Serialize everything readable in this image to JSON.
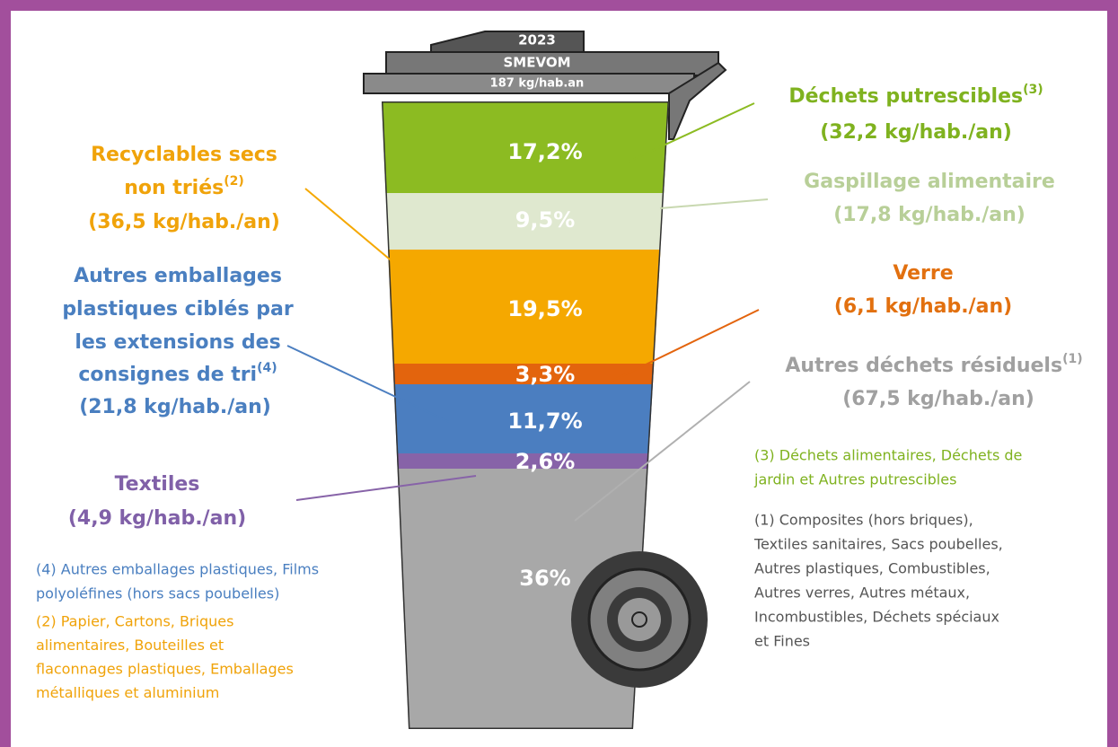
{
  "bin": {
    "year": "2023",
    "org": "SMEVOM",
    "total": "187 kg/hab.an",
    "segments": [
      {
        "label": "17,2%",
        "color": "#8cbb22"
      },
      {
        "label": "9,5%",
        "color": "#dfe8cf"
      },
      {
        "label": "19,5%",
        "color": "#f5a800"
      },
      {
        "label": "3,3%",
        "color": "#e3640d"
      },
      {
        "label": "11,7%",
        "color": "#4b7ec0"
      },
      {
        "label": "2,6%",
        "color": "#8763a8"
      },
      {
        "label": "36%",
        "color": "#a8a8a8"
      }
    ]
  },
  "callouts": {
    "putrescibles": {
      "title": "Déchets putrescibles",
      "sup": "(3)",
      "amount": "(32,2 kg/hab./an)"
    },
    "gaspillage": {
      "title": "Gaspillage alimentaire",
      "amount": "(17,8 kg/hab./an)"
    },
    "verre": {
      "title": "Verre",
      "amount": "(6,1 kg/hab./an)"
    },
    "residuels": {
      "title": "Autres déchets résiduels",
      "sup": "(1)",
      "amount": "(67,5 kg/hab./an)"
    },
    "recyclables": {
      "lines": [
        "Recyclables secs",
        "non triés"
      ],
      "sup": "(2)",
      "amount": "(36,5 kg/hab./an)"
    },
    "emballages": {
      "lines": [
        "Autres emballages",
        "plastiques ciblés par",
        "les extensions des",
        "consignes de tri"
      ],
      "sup": "(4)",
      "amount": "(21,8 kg/hab./an)"
    },
    "textiles": {
      "title": "Textiles",
      "amount": "(4,9 kg/hab./an)"
    }
  },
  "notes": {
    "n3": [
      "(3) Déchets alimentaires, Déchets de",
      "jardin et Autres putrescibles"
    ],
    "n1": [
      "(1) Composites (hors briques),",
      "Textiles sanitaires, Sacs poubelles,",
      "Autres plastiques, Combustibles,",
      "Autres verres, Autres métaux,",
      "Incombustibles, Déchets spéciaux",
      "et Fines"
    ],
    "n4": [
      "(4) Autres emballages plastiques, Films",
      "polyoléfines (hors sacs poubelles)"
    ],
    "n2": [
      "(2) Papier, Cartons, Briques",
      "alimentaires, Bouteilles et",
      "flaconnages plastiques, Emballages",
      "métalliques et aluminium"
    ]
  }
}
